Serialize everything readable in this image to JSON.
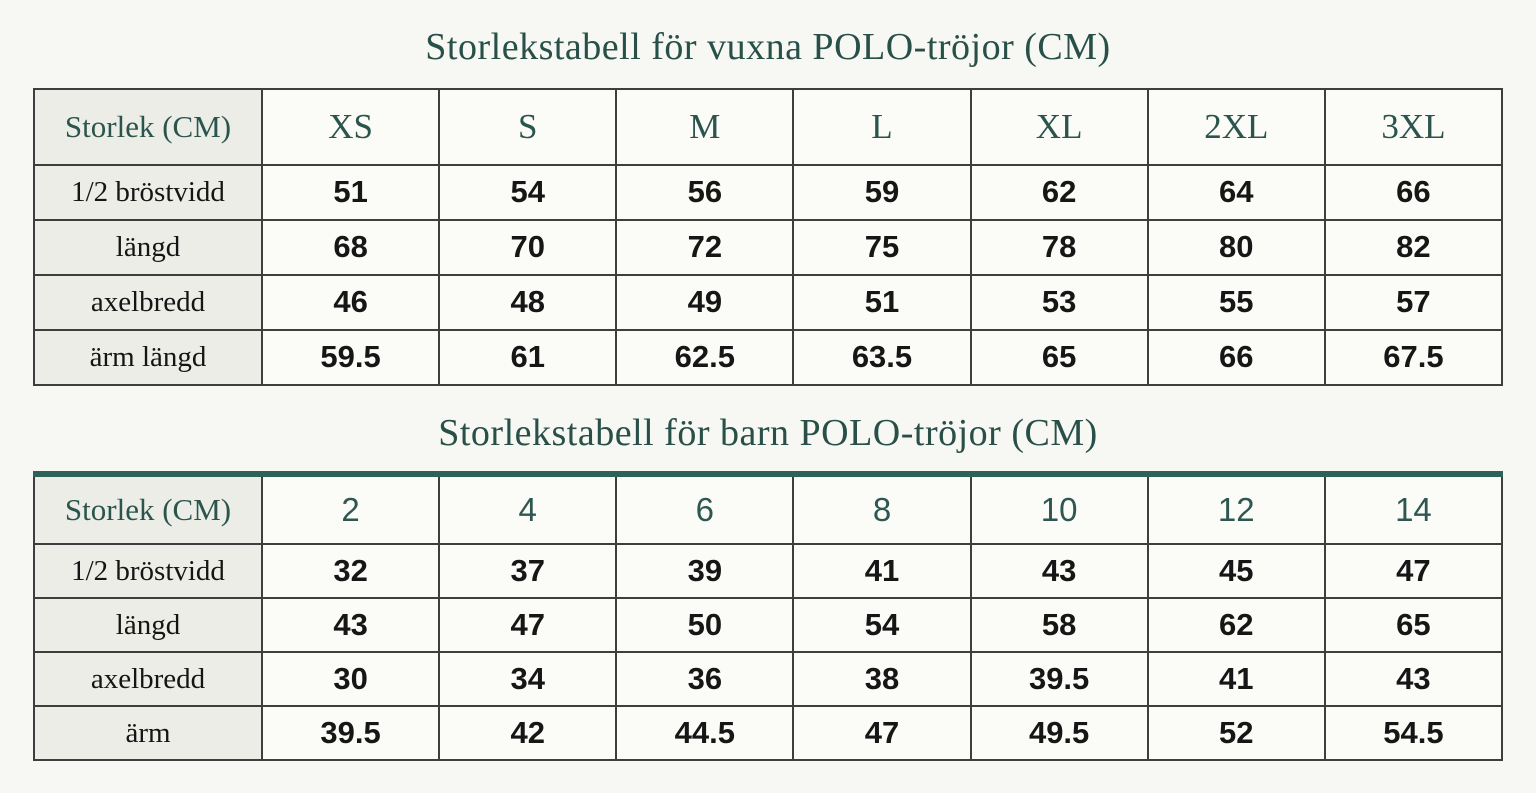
{
  "colors": {
    "page_background": "#f7f8f3",
    "title_text": "#294f49",
    "header_text": "#2b544d",
    "data_text": "#161616",
    "label_cell_background": "#ecede7",
    "cell_background": "#fbfbf8",
    "grid_border": "#3e3e3e",
    "kids_table_top_border": "#2e6157"
  },
  "adult": {
    "title": "Storlekstabell för vuxna POLO-tröjor (CM)",
    "corner": "Storlek (CM)",
    "sizes": [
      "XS",
      "S",
      "M",
      "L",
      "XL",
      "2XL",
      "3XL"
    ],
    "rows": [
      {
        "label": "1/2 bröstvidd",
        "values": [
          "51",
          "54",
          "56",
          "59",
          "62",
          "64",
          "66"
        ]
      },
      {
        "label": "längd",
        "values": [
          "68",
          "70",
          "72",
          "75",
          "78",
          "80",
          "82"
        ]
      },
      {
        "label": "axelbredd",
        "values": [
          "46",
          "48",
          "49",
          "51",
          "53",
          "55",
          "57"
        ]
      },
      {
        "label": "ärm längd",
        "values": [
          "59.5",
          "61",
          "62.5",
          "63.5",
          "65",
          "66",
          "67.5"
        ]
      }
    ]
  },
  "kids": {
    "title": "Storlekstabell för barn POLO-tröjor (CM)",
    "corner": "Storlek (CM)",
    "sizes": [
      "2",
      "4",
      "6",
      "8",
      "10",
      "12",
      "14"
    ],
    "rows": [
      {
        "label": "1/2 bröstvidd",
        "values": [
          "32",
          "37",
          "39",
          "41",
          "43",
          "45",
          "47"
        ]
      },
      {
        "label": "längd",
        "values": [
          "43",
          "47",
          "50",
          "54",
          "58",
          "62",
          "65"
        ]
      },
      {
        "label": "axelbredd",
        "values": [
          "30",
          "34",
          "36",
          "38",
          "39.5",
          "41",
          "43"
        ]
      },
      {
        "label": "ärm",
        "values": [
          "39.5",
          "42",
          "44.5",
          "47",
          "49.5",
          "52",
          "54.5"
        ]
      }
    ]
  },
  "chart_data": [
    {
      "type": "table",
      "title": "Storlekstabell för vuxna POLO-tröjor (CM)",
      "columns": [
        "Storlek (CM)",
        "XS",
        "S",
        "M",
        "L",
        "XL",
        "2XL",
        "3XL"
      ],
      "rows": [
        [
          "1/2 bröstvidd",
          51,
          54,
          56,
          59,
          62,
          64,
          66
        ],
        [
          "längd",
          68,
          70,
          72,
          75,
          78,
          80,
          82
        ],
        [
          "axelbredd",
          46,
          48,
          49,
          51,
          53,
          55,
          57
        ],
        [
          "ärm längd",
          59.5,
          61,
          62.5,
          63.5,
          65,
          66,
          67.5
        ]
      ]
    },
    {
      "type": "table",
      "title": "Storlekstabell för barn POLO-tröjor (CM)",
      "columns": [
        "Storlek (CM)",
        "2",
        "4",
        "6",
        "8",
        "10",
        "12",
        "14"
      ],
      "rows": [
        [
          "1/2 bröstvidd",
          32,
          37,
          39,
          41,
          43,
          45,
          47
        ],
        [
          "längd",
          43,
          47,
          50,
          54,
          58,
          62,
          65
        ],
        [
          "axelbredd",
          30,
          34,
          36,
          38,
          39.5,
          41,
          43
        ],
        [
          "ärm",
          39.5,
          42,
          44.5,
          47,
          49.5,
          52,
          54.5
        ]
      ]
    }
  ]
}
